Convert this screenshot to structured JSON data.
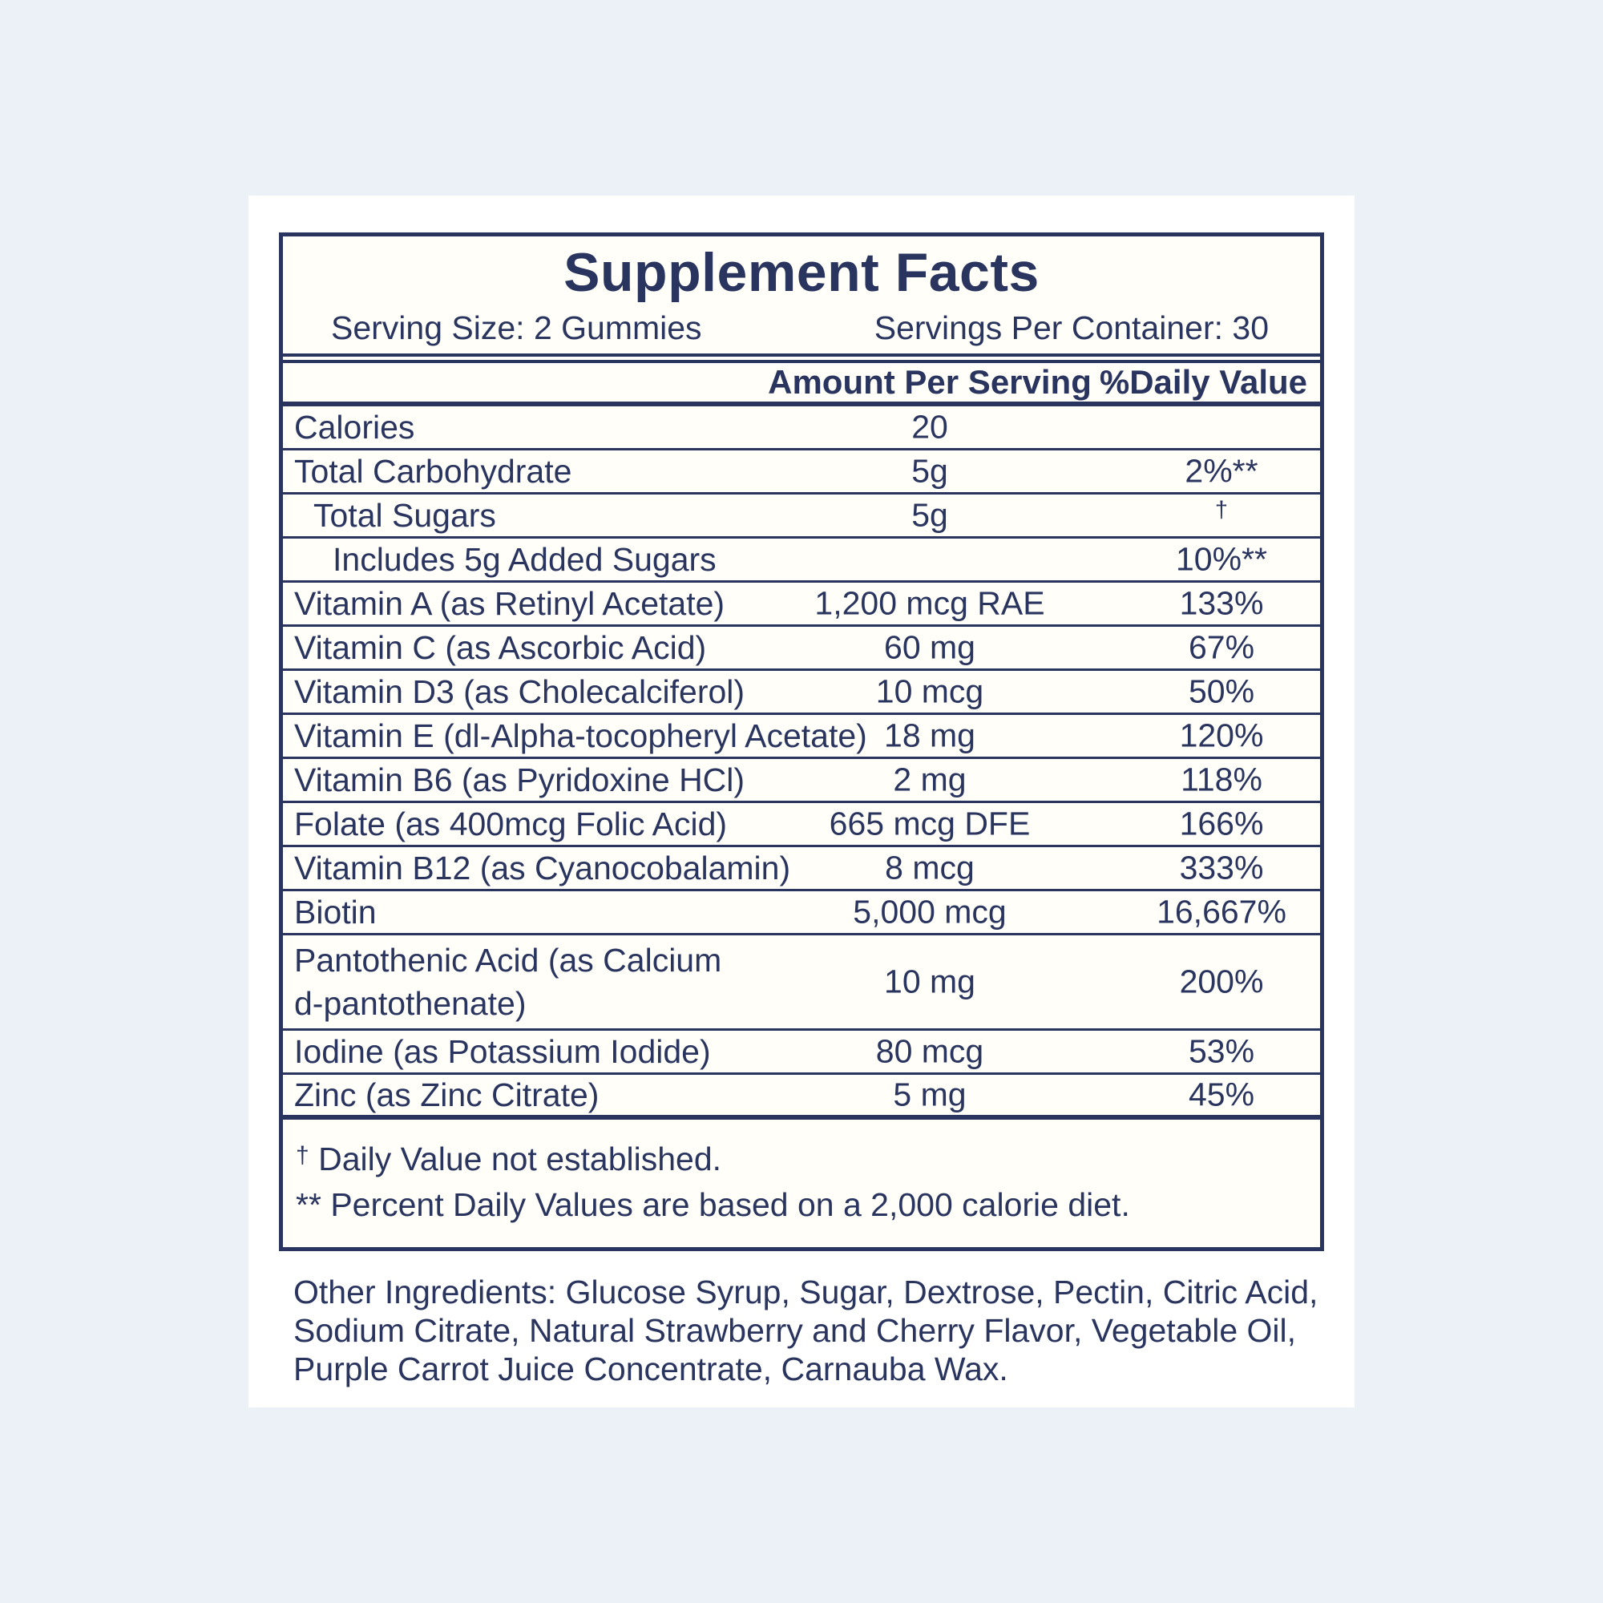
{
  "panel": {
    "title": "Supplement Facts",
    "serving_size": "Serving Size: 2 Gummies",
    "servings_per_container": "Servings Per Container: 30",
    "header": {
      "amount": "Amount Per Serving",
      "daily_value": "%Daily Value"
    },
    "rows": [
      {
        "label": "Calories",
        "amount": "20",
        "dv": "",
        "indent": 0
      },
      {
        "label": "Total Carbohydrate",
        "amount": "5g",
        "dv": "2%**",
        "indent": 0
      },
      {
        "label": "Total Sugars",
        "amount": "5g",
        "dv": "†",
        "indent": 1
      },
      {
        "label": "Includes 5g Added Sugars",
        "amount": "",
        "dv": "10%**",
        "indent": 2
      },
      {
        "label": "Vitamin A (as Retinyl Acetate)",
        "amount": "1,200 mcg RAE",
        "dv": "133%",
        "indent": 0
      },
      {
        "label": "Vitamin C (as Ascorbic Acid)",
        "amount": "60 mg",
        "dv": "67%",
        "indent": 0
      },
      {
        "label": "Vitamin D3 (as Cholecalciferol)",
        "amount": "10 mcg",
        "dv": "50%",
        "indent": 0
      },
      {
        "label": "Vitamin E (dl-Alpha-tocopheryl Acetate)",
        "amount": "18 mg",
        "dv": "120%",
        "indent": 0
      },
      {
        "label": "Vitamin B6 (as Pyridoxine HCl)",
        "amount": "2 mg",
        "dv": "118%",
        "indent": 0
      },
      {
        "label": "Folate (as 400mcg Folic Acid)",
        "amount": "665 mcg DFE",
        "dv": "166%",
        "indent": 0
      },
      {
        "label": "Vitamin B12 (as Cyanocobalamin)",
        "amount": "8 mcg",
        "dv": "333%",
        "indent": 0
      },
      {
        "label": "Biotin",
        "amount": "5,000 mcg",
        "dv": "16,667%",
        "indent": 0
      },
      {
        "label": "Pantothenic Acid (as Calcium d-pantothenate)",
        "amount": "10 mg",
        "dv": "200%",
        "indent": 0,
        "wrap": true
      },
      {
        "label": "Iodine (as Potassium Iodide)",
        "amount": "80 mcg",
        "dv": "53%",
        "indent": 0
      },
      {
        "label": "Zinc (as Zinc Citrate)",
        "amount": "5 mg",
        "dv": "45%",
        "indent": 0
      }
    ],
    "footnotes": [
      {
        "symbol": "†",
        "text": "Daily Value not established."
      },
      {
        "symbol": "**",
        "text": "Percent Daily Values are based on a 2,000 calorie diet."
      }
    ],
    "other_ingredients_lines": [
      "Other Ingredients: Glucose Syrup, Sugar, Dextrose, Pectin, Citric Acid,",
      "Sodium Citrate, Natural Strawberry and Cherry Flavor, Vegetable Oil,",
      "Purple Carrot Juice Concentrate, Carnauba Wax."
    ]
  },
  "colors": {
    "text_navy": "#2A355F",
    "outer_background": "#ECF1F7",
    "page_background": "#FFFFFF"
  }
}
